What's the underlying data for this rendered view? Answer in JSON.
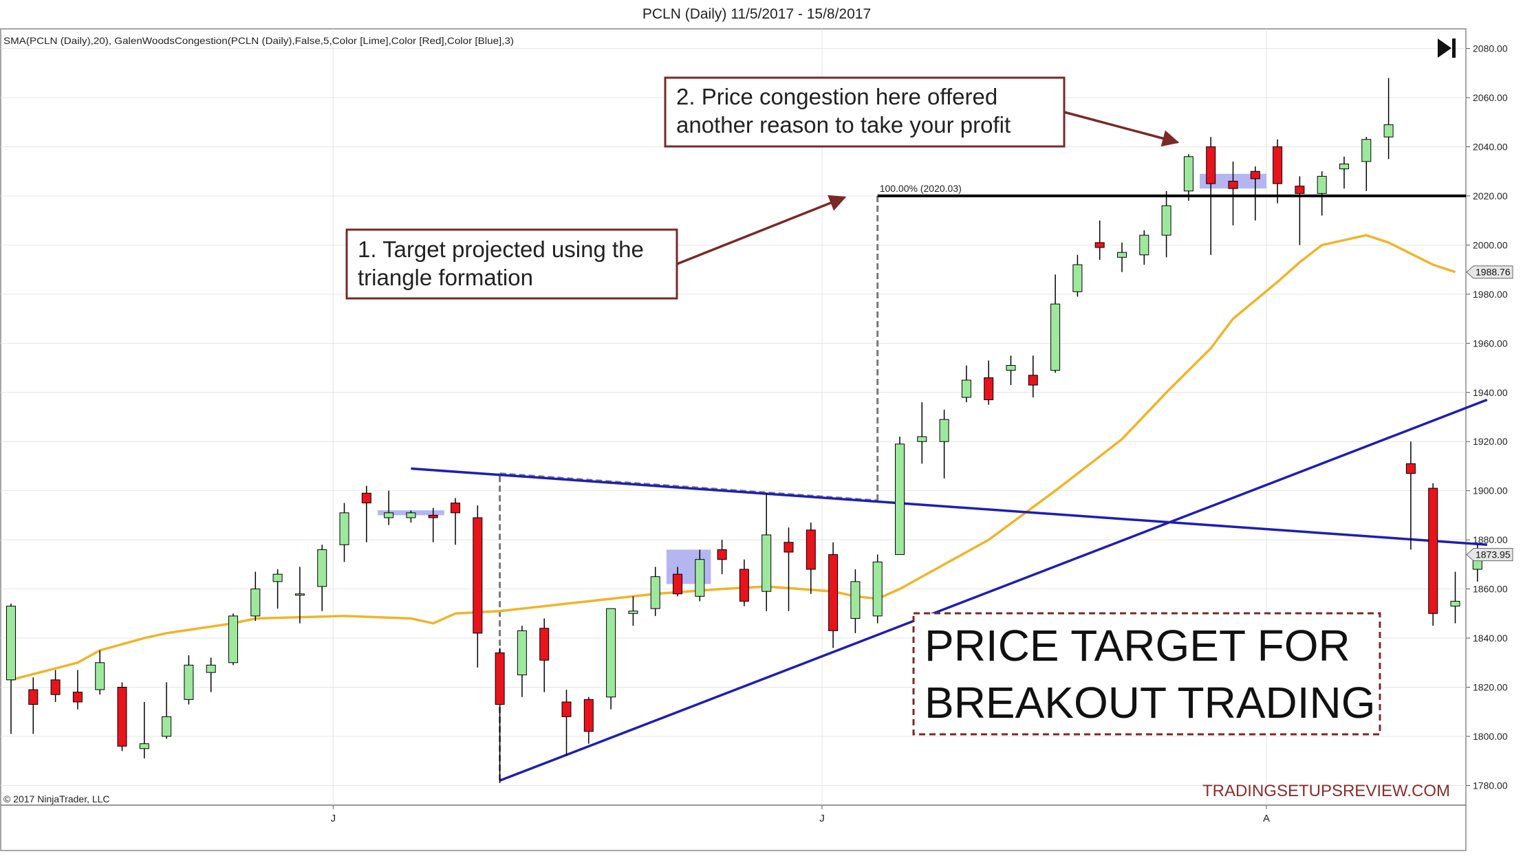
{
  "window": {
    "title": "PCLN (Daily)  11/5/2017 - 15/8/2017",
    "indicator_label": "SMA(PCLN (Daily),20), GalenWoodsCongestion(PCLN (Daily),False,5,Color [Lime],Color [Red],Color [Blue],3)",
    "copyright": "© 2017 NinjaTrader, LLC",
    "watermark": "TRADINGSETUPSREVIEW.COM",
    "play_icon": "skip-to-end-icon"
  },
  "chart_data": {
    "type": "candlestick",
    "title": "PCLN (Daily)  11/5/2017 - 15/8/2017",
    "ylim": [
      1772,
      2088
    ],
    "y_ticks": [
      1780,
      1800,
      1820,
      1840,
      1860,
      1880,
      1900,
      1920,
      1940,
      1960,
      1980,
      2000,
      2020,
      2040,
      2060,
      2080
    ],
    "y_tick_labels": [
      "1780.00",
      "1800.00",
      "1820.00",
      "1840.00",
      "1860.00",
      "1880.00",
      "1900.00",
      "1920.00",
      "1940.00",
      "1960.00",
      "1980.00",
      "2000.00",
      "2020.00",
      "2040.00",
      "2060.00",
      "2080.00"
    ],
    "x_month_labels": [
      {
        "label": "J",
        "index": 14.5
      },
      {
        "label": "J",
        "index": 36.5
      },
      {
        "label": "A",
        "index": 56.5
      }
    ],
    "candles": [
      {
        "o": 1823,
        "h": 1854,
        "l": 1801,
        "c": 1853
      },
      {
        "o": 1819,
        "h": 1824,
        "l": 1801,
        "c": 1813
      },
      {
        "o": 1823,
        "h": 1827,
        "l": 1814,
        "c": 1817
      },
      {
        "o": 1818,
        "h": 1827,
        "l": 1811,
        "c": 1814
      },
      {
        "o": 1819,
        "h": 1835,
        "l": 1817,
        "c": 1830
      },
      {
        "o": 1820,
        "h": 1822,
        "l": 1794,
        "c": 1796
      },
      {
        "o": 1795,
        "h": 1814,
        "l": 1791,
        "c": 1797
      },
      {
        "o": 1800,
        "h": 1822,
        "l": 1799,
        "c": 1808
      },
      {
        "o": 1815,
        "h": 1833,
        "l": 1813,
        "c": 1829
      },
      {
        "o": 1826,
        "h": 1832,
        "l": 1818,
        "c": 1829
      },
      {
        "o": 1830,
        "h": 1850,
        "l": 1829,
        "c": 1849
      },
      {
        "o": 1849,
        "h": 1867,
        "l": 1847,
        "c": 1860
      },
      {
        "o": 1863,
        "h": 1868,
        "l": 1852,
        "c": 1866
      },
      {
        "o": 1858,
        "h": 1869,
        "l": 1846,
        "c": 1858
      },
      {
        "o": 1861,
        "h": 1878,
        "l": 1851,
        "c": 1876
      },
      {
        "o": 1878,
        "h": 1895,
        "l": 1871,
        "c": 1891
      },
      {
        "o": 1899,
        "h": 1902,
        "l": 1879,
        "c": 1895
      },
      {
        "o": 1889,
        "h": 1900,
        "l": 1886,
        "c": 1891
      },
      {
        "o": 1889,
        "h": 1892,
        "l": 1887,
        "c": 1891
      },
      {
        "o": 1890,
        "h": 1893,
        "l": 1879,
        "c": 1889
      },
      {
        "o": 1895,
        "h": 1897,
        "l": 1878,
        "c": 1891
      },
      {
        "o": 1889,
        "h": 1894,
        "l": 1828,
        "c": 1842
      },
      {
        "o": 1834,
        "h": 1836,
        "l": 1781,
        "c": 1813
      },
      {
        "o": 1825,
        "h": 1845,
        "l": 1816,
        "c": 1843
      },
      {
        "o": 1844,
        "h": 1848,
        "l": 1818,
        "c": 1831
      },
      {
        "o": 1814,
        "h": 1819,
        "l": 1792,
        "c": 1808
      },
      {
        "o": 1815,
        "h": 1816,
        "l": 1797,
        "c": 1802
      },
      {
        "o": 1816,
        "h": 1852,
        "l": 1811,
        "c": 1852
      },
      {
        "o": 1850,
        "h": 1857,
        "l": 1845,
        "c": 1851
      },
      {
        "o": 1852,
        "h": 1869,
        "l": 1849,
        "c": 1865
      },
      {
        "o": 1866,
        "h": 1869,
        "l": 1857,
        "c": 1858
      },
      {
        "o": 1857,
        "h": 1876,
        "l": 1855,
        "c": 1872
      },
      {
        "o": 1876,
        "h": 1880,
        "l": 1866,
        "c": 1872
      },
      {
        "o": 1868,
        "h": 1872,
        "l": 1853,
        "c": 1855
      },
      {
        "o": 1859,
        "h": 1899,
        "l": 1851,
        "c": 1882
      },
      {
        "o": 1879,
        "h": 1885,
        "l": 1851,
        "c": 1875
      },
      {
        "o": 1884,
        "h": 1887,
        "l": 1858,
        "c": 1868
      },
      {
        "o": 1874,
        "h": 1879,
        "l": 1836,
        "c": 1843
      },
      {
        "o": 1848,
        "h": 1868,
        "l": 1842,
        "c": 1863
      },
      {
        "o": 1849,
        "h": 1874,
        "l": 1846,
        "c": 1871
      },
      {
        "o": 1874,
        "h": 1922,
        "l": 1874,
        "c": 1919
      },
      {
        "o": 1920,
        "h": 1936,
        "l": 1911,
        "c": 1922
      },
      {
        "o": 1920,
        "h": 1933,
        "l": 1905,
        "c": 1929
      },
      {
        "o": 1938,
        "h": 1951,
        "l": 1936,
        "c": 1945
      },
      {
        "o": 1946,
        "h": 1953,
        "l": 1935,
        "c": 1937
      },
      {
        "o": 1949,
        "h": 1955,
        "l": 1943,
        "c": 1951
      },
      {
        "o": 1947,
        "h": 1955,
        "l": 1938,
        "c": 1943
      },
      {
        "o": 1949,
        "h": 1988,
        "l": 1948,
        "c": 1976
      },
      {
        "o": 1981,
        "h": 1996,
        "l": 1979,
        "c": 1992
      },
      {
        "o": 2001,
        "h": 2010,
        "l": 1994,
        "c": 1999
      },
      {
        "o": 1995,
        "h": 2001,
        "l": 1989,
        "c": 1997
      },
      {
        "o": 1996,
        "h": 2006,
        "l": 1992,
        "c": 2004
      },
      {
        "o": 2004,
        "h": 2022,
        "l": 1995,
        "c": 2016
      },
      {
        "o": 2022,
        "h": 2037,
        "l": 2018,
        "c": 2036
      },
      {
        "o": 2040,
        "h": 2044,
        "l": 1996,
        "c": 2025
      },
      {
        "o": 2026,
        "h": 2034,
        "l": 2008,
        "c": 2023
      },
      {
        "o": 2030,
        "h": 2032,
        "l": 2010,
        "c": 2027
      },
      {
        "o": 2040,
        "h": 2043,
        "l": 2017,
        "c": 2025
      },
      {
        "o": 2024,
        "h": 2028,
        "l": 2000,
        "c": 2021
      },
      {
        "o": 2021,
        "h": 2030,
        "l": 2012,
        "c": 2028
      },
      {
        "o": 2031,
        "h": 2036,
        "l": 2023,
        "c": 2033
      },
      {
        "o": 2034,
        "h": 2044,
        "l": 2022,
        "c": 2043
      },
      {
        "o": 2044,
        "h": 2068,
        "l": 2035,
        "c": 2049
      },
      {
        "o": 1911,
        "h": 1920,
        "l": 1876,
        "c": 1907
      },
      {
        "o": 1901,
        "h": 1903,
        "l": 1845,
        "c": 1850
      },
      {
        "o": 1853,
        "h": 1867,
        "l": 1846,
        "c": 1855
      },
      {
        "o": 1868,
        "h": 1878,
        "l": 1863,
        "c": 1874
      }
    ],
    "sma": [
      {
        "i": 0,
        "v": 1823
      },
      {
        "i": 3,
        "v": 1830
      },
      {
        "i": 4,
        "v": 1835
      },
      {
        "i": 6,
        "v": 1840
      },
      {
        "i": 7,
        "v": 1842
      },
      {
        "i": 10,
        "v": 1846
      },
      {
        "i": 11,
        "v": 1848
      },
      {
        "i": 15,
        "v": 1849
      },
      {
        "i": 18,
        "v": 1848
      },
      {
        "i": 19,
        "v": 1846
      },
      {
        "i": 20,
        "v": 1850
      },
      {
        "i": 22,
        "v": 1851
      },
      {
        "i": 25,
        "v": 1854
      },
      {
        "i": 26,
        "v": 1855
      },
      {
        "i": 29,
        "v": 1858
      },
      {
        "i": 32,
        "v": 1860
      },
      {
        "i": 34,
        "v": 1861
      },
      {
        "i": 37,
        "v": 1859
      },
      {
        "i": 38,
        "v": 1857
      },
      {
        "i": 39,
        "v": 1856
      },
      {
        "i": 40,
        "v": 1860
      },
      {
        "i": 42,
        "v": 1870
      },
      {
        "i": 44,
        "v": 1880
      },
      {
        "i": 47,
        "v": 1900
      },
      {
        "i": 50,
        "v": 1921
      },
      {
        "i": 52,
        "v": 1940
      },
      {
        "i": 54,
        "v": 1958
      },
      {
        "i": 55,
        "v": 1970
      },
      {
        "i": 57,
        "v": 1985
      },
      {
        "i": 58,
        "v": 1993
      },
      {
        "i": 59,
        "v": 2000
      },
      {
        "i": 61,
        "v": 2004
      },
      {
        "i": 62,
        "v": 2001
      },
      {
        "i": 64,
        "v": 1992
      },
      {
        "i": 65,
        "v": 1989
      }
    ],
    "sma_last_label": "1988.76",
    "last_price_label": "1873.95",
    "trendlines": [
      {
        "name": "upper-triangle-line",
        "from": [
          18,
          1909
        ],
        "to": [
          66,
          1878
        ]
      },
      {
        "name": "lower-triangle-line",
        "from": [
          22,
          1782
        ],
        "to": [
          66,
          1937
        ]
      }
    ],
    "target_line": {
      "value": 2020.03,
      "from": 39,
      "to": 66,
      "label": "100.00% (2020.03)"
    },
    "projection_dashes": [
      {
        "name": "triangle-height-dash",
        "from": [
          22,
          1782
        ],
        "to": [
          22,
          1907
        ]
      },
      {
        "name": "triangle-top-dash",
        "from": [
          22,
          1907
        ],
        "to": [
          39,
          1896
        ]
      },
      {
        "name": "projection-vertical-dash",
        "from": [
          39,
          1896
        ],
        "to": [
          39,
          2020
        ]
      }
    ],
    "congestion_zones": [
      {
        "from": 16.5,
        "to": 19.5,
        "low": 1890,
        "high": 1892
      },
      {
        "from": 29.5,
        "to": 31.5,
        "low": 1862,
        "high": 1876
      },
      {
        "from": 53.5,
        "to": 56.5,
        "low": 2023,
        "high": 2029
      }
    ],
    "sma_color": "#f0b429",
    "trendline_color": "#1e1eb4",
    "up_color": "#9ee89e",
    "down_color": "#e8131b"
  },
  "annotations": {
    "target_callout": {
      "line1": "1. Target projected using the",
      "line2": "triangle formation"
    },
    "congestion_callout": {
      "line1": "2. Price congestion here offered",
      "line2": "another reason to take your profit"
    },
    "headline": {
      "line1": "PRICE TARGET FOR",
      "line2": "BREAKOUT TRADING"
    },
    "callout_color": "#7a2828"
  }
}
